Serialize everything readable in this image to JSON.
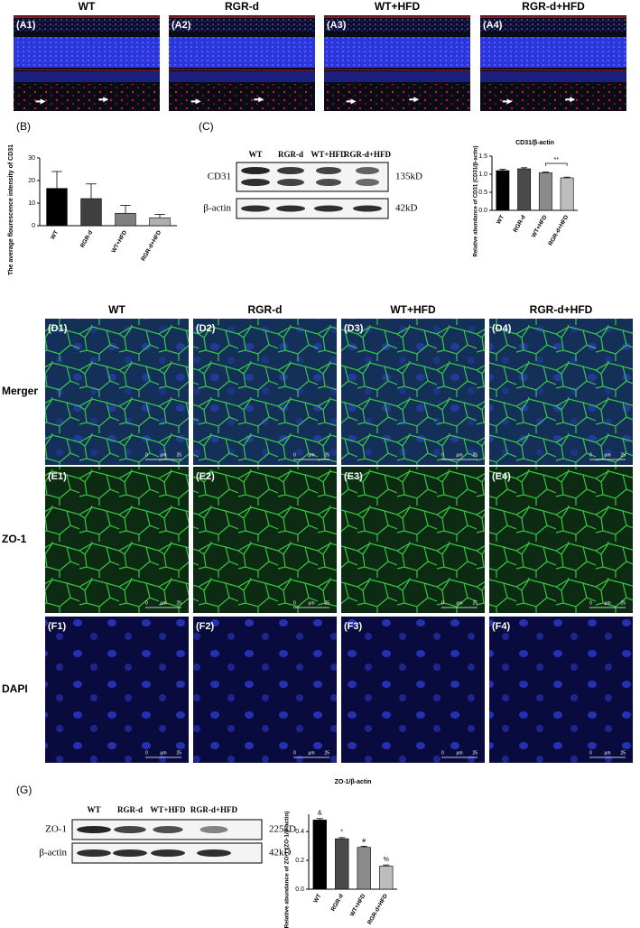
{
  "figure": {
    "columns": [
      "WT",
      "RGR-d",
      "WT+HFD",
      "RGR-d+HFD"
    ],
    "a_labels": [
      "(A1)",
      "(A2)",
      "(A3)",
      "(A4)"
    ],
    "b_label": "(B)",
    "c_label": "(C)",
    "g_label": "(G)",
    "row_labels": [
      "Merger",
      "ZO-1",
      "DAPI"
    ],
    "d_labels": [
      "(D1)",
      "(D2)",
      "(D3)",
      "(D4)"
    ],
    "e_labels": [
      "(E1)",
      "(E2)",
      "(E3)",
      "(E4)"
    ],
    "f_labels": [
      "(F1)",
      "(F2)",
      "(F3)",
      "(F4)"
    ],
    "scale_bar": {
      "start": "0",
      "unit": "μm",
      "end": "25"
    },
    "blot_c": {
      "lanes": [
        "WT",
        "RGR-d",
        "WT+HFD",
        "RGR-d+HFD"
      ],
      "rows": [
        "CD31",
        "β-actin"
      ],
      "sizes": [
        "135kD",
        "42kD"
      ]
    },
    "blot_g": {
      "lanes": [
        "WT",
        "RGR-d",
        "WT+HFD",
        "RGR-d+HFD"
      ],
      "rows": [
        "ZO-1",
        "β-actin"
      ],
      "sizes": [
        "225kD",
        "42kD"
      ]
    }
  },
  "chart_data": [
    {
      "type": "bar",
      "y_label": "The average flourescence intensity of CD31",
      "categories": [
        "WT",
        "RGR-d",
        "WT+HFD",
        "RGR-d+HFD"
      ],
      "values": [
        16.5,
        12,
        5.5,
        3.5
      ],
      "errors": [
        7.5,
        6.5,
        3.5,
        1.5
      ],
      "colors": [
        "#000000",
        "#404040",
        "#808080",
        "#b0b0b0"
      ],
      "ylim": [
        0,
        30
      ],
      "yticks": [
        0,
        10,
        20,
        30
      ]
    },
    {
      "type": "bar",
      "title": "CD31/β-actin",
      "y_label": "Relative abundance of CD31 (CD31/β-actin)",
      "categories": [
        "WT",
        "RGR-d",
        "WT+HFD",
        "RGR-d+HFD"
      ],
      "values": [
        1.1,
        1.15,
        1.04,
        0.9
      ],
      "errors": [
        0.04,
        0.03,
        0.02,
        0.02
      ],
      "colors": [
        "#000000",
        "#4a4a4a",
        "#8a8a8a",
        "#bdbdbd"
      ],
      "annotation": "**",
      "ylim": [
        0,
        1.5
      ],
      "yticks": [
        {
          "value": 0,
          "label": "0.0"
        },
        0.5,
        {
          "value": 1,
          "label": "1.0"
        },
        1.5
      ]
    },
    {
      "type": "bar",
      "title": "ZO-1/β-actin",
      "y_label": "Relative abundance of ZO-1 (ZO-1/β-actin)",
      "categories": [
        "WT",
        "RGR-d",
        "WT+HFD",
        "RGR-d+HFD"
      ],
      "values": [
        0.48,
        0.35,
        0.29,
        0.16
      ],
      "errors": [
        0.01,
        0.008,
        0.008,
        0.008
      ],
      "colors": [
        "#000000",
        "#4a4a4a",
        "#8a8a8a",
        "#bdbdbd"
      ],
      "bar_labels": [
        "&",
        "*",
        "#",
        "%"
      ],
      "ylim": [
        0,
        0.52
      ],
      "yticks": [
        {
          "value": 0,
          "label": "0.0"
        },
        0.2,
        0.4
      ]
    }
  ]
}
